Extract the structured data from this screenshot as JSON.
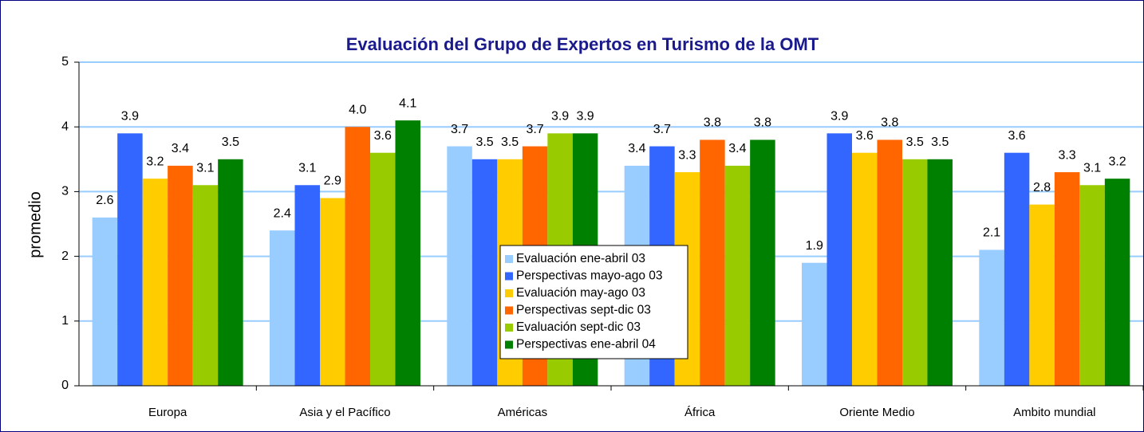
{
  "chart_data": {
    "type": "bar",
    "title": "Evaluación del Grupo de Expertos en Turismo de la OMT",
    "y_label": "promedio",
    "categories": [
      "Europa",
      "Asia y el Pacífico",
      "Américas",
      "África",
      "Oriente Medio",
      "Ambito mundial"
    ],
    "series": [
      {
        "name": "Evaluación ene-abril 03",
        "color": "#99ccff",
        "values": [
          2.6,
          2.4,
          3.7,
          3.4,
          1.9,
          2.1
        ],
        "value_labels": [
          "2.6",
          "2.4",
          "3.7",
          "3.4",
          "1.9",
          "2.1"
        ]
      },
      {
        "name": "Perspectivas mayo-ago 03",
        "color": "#3366ff",
        "values": [
          3.9,
          3.1,
          3.5,
          3.7,
          3.9,
          3.6
        ],
        "value_labels": [
          "3.9",
          "3.1",
          "3.5",
          "3.7",
          "3.9",
          "3.6"
        ]
      },
      {
        "name": "Evaluación may-ago 03",
        "color": "#ffcc00",
        "values": [
          3.2,
          2.9,
          3.5,
          3.3,
          3.6,
          2.8
        ],
        "value_labels": [
          "3.2",
          "2.9",
          "3.5",
          "3.3",
          "3.6",
          "2.8"
        ]
      },
      {
        "name": "Perspectivas sept-dic 03",
        "color": "#ff6600",
        "values": [
          3.4,
          4.0,
          3.7,
          3.8,
          3.8,
          3.3
        ],
        "value_labels": [
          "3.4",
          "4.0",
          "3.7",
          "3.8",
          "3.8",
          "3.3"
        ]
      },
      {
        "name": "Evaluación sept-dic 03",
        "color": "#99cc00",
        "values": [
          3.1,
          3.6,
          3.9,
          3.4,
          3.5,
          3.1
        ],
        "value_labels": [
          "3.1",
          "3.6",
          "3.9",
          "3.4",
          "3.5",
          "3.1"
        ]
      },
      {
        "name": "Perspectivas ene-abril 04",
        "color": "#008000",
        "values": [
          3.5,
          4.1,
          3.9,
          3.8,
          3.5,
          3.2
        ],
        "value_labels": [
          "3.5",
          "4.1",
          "3.9",
          "3.8",
          "3.5",
          "3.2"
        ]
      }
    ],
    "ylim": [
      0,
      5
    ],
    "yticks": [
      0,
      1,
      2,
      3,
      4,
      5
    ],
    "grid": true,
    "legend": "center"
  }
}
